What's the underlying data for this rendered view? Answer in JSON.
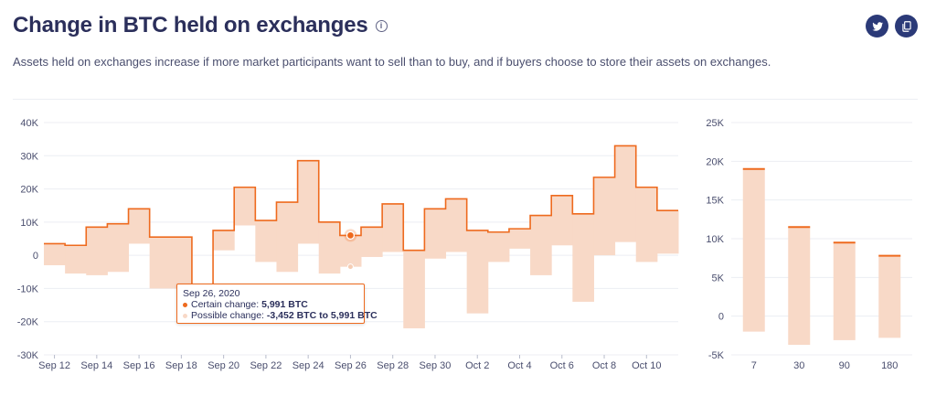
{
  "header": {
    "title": "Change in BTC held on exchanges",
    "info_icon": "info-icon",
    "subtitle": "Assets held on exchanges increase if more market participants want to sell than to buy, and if buyers choose to store their assets on exchanges.",
    "twitter_icon": "twitter-icon",
    "copy_icon": "copy-icon"
  },
  "colors": {
    "line": "#ee6a1e",
    "band": "#f8d9c7",
    "grid": "#eceef3",
    "text": "#2b2f5b",
    "icon_bg": "#2b3a78"
  },
  "chart_data": [
    {
      "type": "area",
      "subtype": "step-line-with-range-band",
      "x": [
        "Sep 12",
        "Sep 13",
        "Sep 14",
        "Sep 15",
        "Sep 16",
        "Sep 17",
        "Sep 18",
        "Sep 19",
        "Sep 20",
        "Sep 21",
        "Sep 22",
        "Sep 23",
        "Sep 24",
        "Sep 25",
        "Sep 26",
        "Sep 27",
        "Sep 28",
        "Sep 29",
        "Sep 30",
        "Oct 1",
        "Oct 2",
        "Oct 3",
        "Oct 4",
        "Oct 5",
        "Oct 6",
        "Oct 7",
        "Oct 8",
        "Oct 9",
        "Oct 10",
        "Oct 11"
      ],
      "xticks": [
        "Sep 12",
        "Sep 14",
        "Sep 16",
        "Sep 18",
        "Sep 20",
        "Sep 22",
        "Sep 24",
        "Sep 26",
        "Sep 28",
        "Sep 30",
        "Oct 2",
        "Oct 4",
        "Oct 6",
        "Oct 8",
        "Oct 10"
      ],
      "series": [
        {
          "name": "Certain change",
          "values": [
            3500,
            3000,
            8500,
            9500,
            14000,
            5500,
            5500,
            -17000,
            7500,
            20500,
            10500,
            16000,
            28500,
            10000,
            5991,
            8500,
            15500,
            1500,
            14000,
            17000,
            7500,
            7000,
            8000,
            12000,
            18000,
            12500,
            23500,
            33000,
            20500,
            13500
          ]
        },
        {
          "name": "Possible change (low)",
          "values": [
            -3000,
            -5500,
            -6000,
            -5000,
            3500,
            -10000,
            -10000,
            -17000,
            1500,
            9000,
            -2000,
            -5000,
            3500,
            -5500,
            -3452,
            -500,
            1000,
            -22000,
            -1000,
            1000,
            -17500,
            -2000,
            2000,
            -6000,
            3000,
            -14000,
            0,
            4000,
            -2000,
            500
          ]
        }
      ],
      "yticks": [
        "40K",
        "30K",
        "20K",
        "10K",
        "0",
        "-10K",
        "-20K",
        "-30K"
      ],
      "ylim": [
        -30000,
        40000
      ],
      "grid": true,
      "tooltip": {
        "date": "Sep 26, 2020",
        "certain_label": "Certain change:",
        "certain_value": "5,991 BTC",
        "possible_label": "Possible change:",
        "possible_value": "-3,452 BTC to 5,991 BTC",
        "index": 14
      }
    },
    {
      "type": "bar",
      "subtype": "range-bar",
      "categories": [
        "7",
        "30",
        "90",
        "180"
      ],
      "series": [
        {
          "name": "Certain change",
          "values": [
            19000,
            11500,
            9500,
            7800
          ]
        },
        {
          "name": "Possible change (low)",
          "values": [
            -2000,
            -3700,
            -3100,
            -2800
          ]
        }
      ],
      "yticks": [
        "25K",
        "20K",
        "15K",
        "10K",
        "5K",
        "0",
        "-5K"
      ],
      "ylim": [
        -5000,
        25000
      ],
      "grid": true
    }
  ]
}
